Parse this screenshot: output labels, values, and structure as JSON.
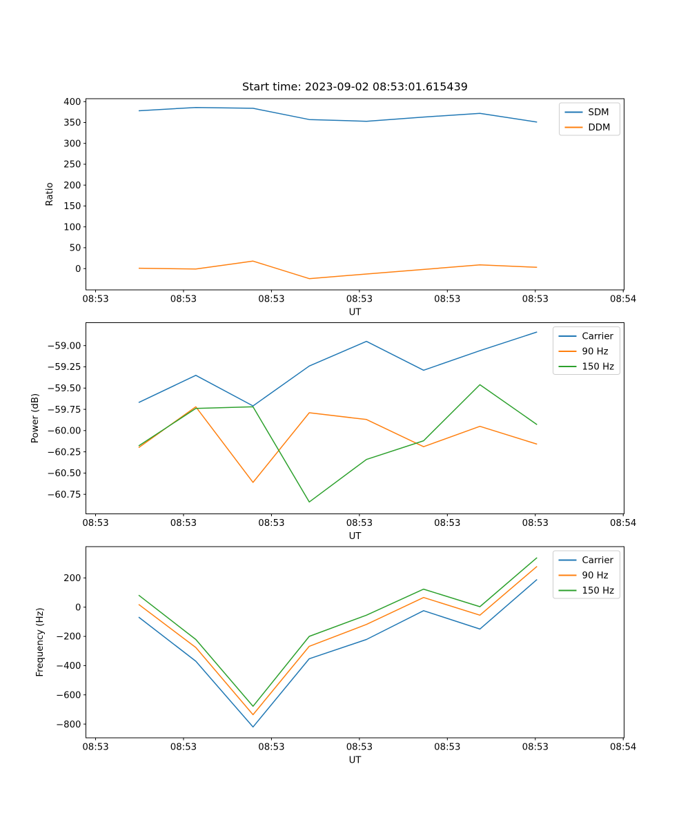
{
  "figure": {
    "title": "Start time: 2023-09-02 08:53:01.615439",
    "background": "#ffffff",
    "spine_color": "#000000",
    "legend_edge_color": "#cccccc",
    "series_colors": {
      "blue": "#1f77b4",
      "orange": "#ff7f0e",
      "green": "#2ca02c"
    }
  },
  "chart_data": [
    {
      "id": "ratio",
      "type": "line",
      "title": "Start time: 2023-09-02 08:53:01.615439",
      "xlabel": "UT",
      "ylabel": "Ratio",
      "x_seconds": [
        4.9,
        11.4,
        17.9,
        24.3,
        30.8,
        37.3,
        43.7,
        50.2
      ],
      "xlim_seconds": [
        -1.1,
        60.1
      ],
      "xticks_seconds": [
        0,
        10,
        20,
        30,
        40,
        50,
        60
      ],
      "xtick_labels": [
        "08:53",
        "08:53",
        "08:53",
        "08:53",
        "08:53",
        "08:53",
        "08:54"
      ],
      "ylim": [
        -51,
        407
      ],
      "yticks": [
        0,
        50,
        100,
        150,
        200,
        250,
        300,
        350,
        400
      ],
      "ytick_labels": [
        "0",
        "50",
        "100",
        "150",
        "200",
        "250",
        "300",
        "350",
        "400"
      ],
      "grid": false,
      "legend_position": "upper right",
      "series": [
        {
          "name": "SDM",
          "color": "#1f77b4",
          "values": [
            378,
            386,
            384,
            357,
            353,
            363,
            372,
            351
          ]
        },
        {
          "name": "DDM",
          "color": "#ff7f0e",
          "values": [
            1,
            -1,
            18,
            -24,
            -13,
            -2,
            9,
            3
          ]
        }
      ]
    },
    {
      "id": "power",
      "type": "line",
      "title": "",
      "xlabel": "UT",
      "ylabel": "Power (dB)",
      "x_seconds": [
        4.9,
        11.4,
        17.9,
        24.3,
        30.8,
        37.3,
        43.7,
        50.2
      ],
      "xlim_seconds": [
        -1.1,
        60.1
      ],
      "xticks_seconds": [
        0,
        10,
        20,
        30,
        40,
        50,
        60
      ],
      "xtick_labels": [
        "08:53",
        "08:53",
        "08:53",
        "08:53",
        "08:53",
        "08:53",
        "08:54"
      ],
      "ylim": [
        -60.98,
        -58.73
      ],
      "yticks": [
        -59.0,
        -59.25,
        -59.5,
        -59.75,
        -60.0,
        -60.25,
        -60.5,
        -60.75
      ],
      "ytick_labels": [
        "−59.00",
        "−59.25",
        "−59.50",
        "−59.75",
        "−60.00",
        "−60.25",
        "−60.50",
        "−60.75"
      ],
      "grid": false,
      "legend_position": "upper right",
      "series": [
        {
          "name": "Carrier",
          "color": "#1f77b4",
          "values": [
            -59.67,
            -59.35,
            -59.71,
            -59.24,
            -58.95,
            -59.29,
            -59.06,
            -58.84
          ]
        },
        {
          "name": "90 Hz",
          "color": "#ff7f0e",
          "values": [
            -60.2,
            -59.72,
            -60.61,
            -59.79,
            -59.87,
            -60.19,
            -59.95,
            -60.16
          ]
        },
        {
          "name": "150 Hz",
          "color": "#2ca02c",
          "values": [
            -60.18,
            -59.74,
            -59.72,
            -60.84,
            -60.34,
            -60.12,
            -59.46,
            -59.93
          ]
        }
      ]
    },
    {
      "id": "frequency",
      "type": "line",
      "title": "",
      "xlabel": "UT",
      "ylabel": "Frequency (Hz)",
      "x_seconds": [
        4.9,
        11.4,
        17.9,
        24.3,
        30.8,
        37.3,
        43.7,
        50.2
      ],
      "xlim_seconds": [
        -1.1,
        60.1
      ],
      "xticks_seconds": [
        0,
        10,
        20,
        30,
        40,
        50,
        60
      ],
      "xtick_labels": [
        "08:53",
        "08:53",
        "08:53",
        "08:53",
        "08:53",
        "08:53",
        "08:54"
      ],
      "ylim": [
        -894,
        414
      ],
      "yticks": [
        200,
        0,
        -200,
        -400,
        -600,
        -800
      ],
      "ytick_labels": [
        "200",
        "0",
        "−200",
        "−400",
        "−600",
        "−800"
      ],
      "grid": false,
      "legend_position": "upper right",
      "series": [
        {
          "name": "Carrier",
          "color": "#1f77b4",
          "values": [
            -68,
            -370,
            -820,
            -353,
            -221,
            -24,
            -150,
            189
          ]
        },
        {
          "name": "90 Hz",
          "color": "#ff7f0e",
          "values": [
            19,
            -276,
            -736,
            -268,
            -118,
            66,
            -55,
            279
          ]
        },
        {
          "name": "150 Hz",
          "color": "#2ca02c",
          "values": [
            82,
            -221,
            -678,
            -200,
            -55,
            123,
            3,
            339
          ]
        }
      ]
    }
  ]
}
